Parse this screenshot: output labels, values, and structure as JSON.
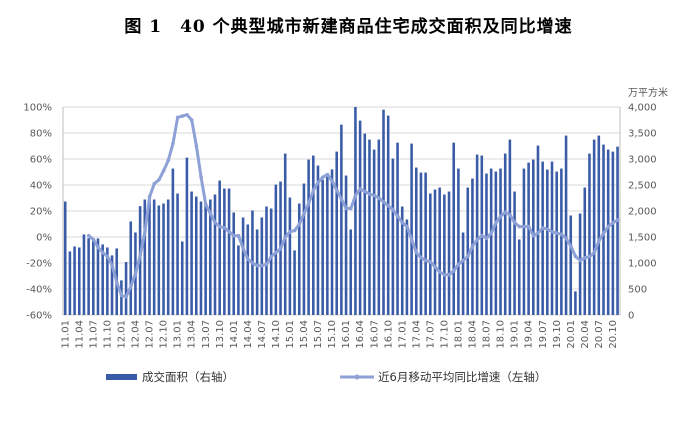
{
  "chart_data": {
    "type": "bar+line",
    "title": "图 1　40 个典型城市新建商品住宅成交面积及同比增速",
    "y_right_unit": "万平方米",
    "y_left_ticks": [
      "100%",
      "80%",
      "60%",
      "40%",
      "20%",
      "0%",
      "-20%",
      "-40%",
      "-60%"
    ],
    "y_left_range": [
      -60,
      100
    ],
    "y_right_ticks": [
      "4,000",
      "3,500",
      "3,000",
      "2,500",
      "2,000",
      "1,500",
      "1,000",
      "500",
      "0"
    ],
    "y_right_range": [
      0,
      4000
    ],
    "x_tick_labels": [
      "11.01",
      "11.04",
      "11.07",
      "11.10",
      "12.01",
      "12.04",
      "12.07",
      "12.10",
      "13.01",
      "13.04",
      "13.07",
      "13.10",
      "14.01",
      "14.04",
      "14.07",
      "14.10",
      "15.01",
      "15.04",
      "15.07",
      "15.10",
      "16.01",
      "16.04",
      "16.07",
      "16.10",
      "17.01",
      "17.04",
      "17.07",
      "17.10",
      "18.01",
      "18.04",
      "18.07",
      "18.10",
      "19.01",
      "19.04",
      "19.07",
      "19.10",
      "20.01",
      "20.04",
      "20.07",
      "20.10"
    ],
    "x_start": "2011.01",
    "x_end": "2020.11",
    "grid": true,
    "legend_position": "bottom",
    "colors": {
      "bar": "#3a5ca8",
      "line": "#8ea1d6",
      "grid": "#d9d9d9"
    },
    "series": [
      {
        "name": "成交面积（右轴）",
        "type": "bar",
        "axis": "right",
        "start": "2011.01",
        "values": [
          2182,
          1222,
          1318,
          1299,
          1549,
          1478,
          1440,
          1472,
          1357,
          1299,
          1146,
          1280,
          666,
          1018,
          1798,
          1587,
          2093,
          2221,
          2285,
          2221,
          2106,
          2144,
          2221,
          2816,
          2336,
          1414,
          3027,
          2374,
          2278,
          2182,
          2157,
          2221,
          2317,
          2586,
          2432,
          2432,
          1971,
          1338,
          1875,
          1741,
          2010,
          1645,
          1875,
          2086,
          2048,
          2509,
          2566,
          3104,
          2259,
          1242,
          2144,
          2528,
          2989,
          3066,
          2874,
          2600,
          2700,
          2800,
          3142,
          3661,
          2682,
          1645,
          4000,
          3738,
          3488,
          3373,
          3181,
          3373,
          3949,
          3834,
          3008,
          3315,
          2086,
          1837,
          3296,
          2835,
          2739,
          2739,
          2336,
          2413,
          2451,
          2317,
          2374,
          3315,
          2816,
          1587,
          2451,
          2624,
          3085,
          3066,
          2720,
          2816,
          2758,
          2816,
          3104,
          3373,
          2374,
          1453,
          2816,
          2931,
          2989,
          3258,
          2950,
          2797,
          2950,
          2758,
          2816,
          3450,
          1914,
          454,
          1952,
          2451,
          3104,
          3373,
          3450,
          3277,
          3181,
          3142,
          3238
        ]
      },
      {
        "name": "近6月移动平均同比增速（左轴）",
        "type": "line",
        "axis": "left",
        "start": "2011.06",
        "values": [
          1,
          -2,
          -8,
          -12,
          -15,
          -22,
          -35,
          -45,
          -46,
          -38,
          -28,
          -14,
          4,
          31,
          41,
          44,
          51,
          59,
          72,
          92,
          93,
          94,
          90,
          70,
          46,
          25,
          18,
          11,
          8,
          7,
          4,
          1,
          1,
          -9,
          -17,
          -20,
          -22,
          -22,
          -21,
          -15,
          -12,
          -9,
          0,
          4,
          5,
          10,
          18,
          26,
          36,
          42,
          46,
          48,
          43,
          36,
          29,
          22,
          22,
          32,
          37,
          35,
          33,
          32,
          30,
          27,
          24,
          21,
          16,
          11,
          8,
          -2,
          -12,
          -16,
          -18,
          -19,
          -23,
          -27,
          -29,
          -29,
          -26,
          -21,
          -18,
          -15,
          -7,
          -2,
          1,
          -1,
          3,
          11,
          16,
          19,
          17,
          11,
          8,
          8,
          8,
          1,
          3,
          7,
          6,
          4,
          3,
          2,
          -1,
          -7,
          -15,
          -18,
          -16,
          -15,
          -12,
          -3,
          3,
          8,
          11,
          13
        ]
      }
    ]
  }
}
